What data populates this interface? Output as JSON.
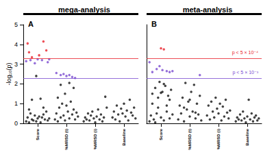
{
  "chart_data": [
    {
      "type": "scatter",
      "panel": "A",
      "title": "mega-analysis",
      "y_label": "-log₁₀(p)",
      "xlim": [
        0,
        4
      ],
      "xticks": [
        {
          "value": 0.5,
          "label": "Score"
        },
        {
          "value": 1.5,
          "label": "%MRSD (t)"
        },
        {
          "value": 2.5,
          "label": "%MRSD (i)"
        },
        {
          "value": 3.5,
          "label": "Baseline"
        }
      ],
      "ylim": [
        0,
        5
      ],
      "yticks": [
        0,
        1,
        2,
        3,
        4,
        5
      ],
      "grid": false,
      "tick_labels": true,
      "hlines": [
        {
          "value": 3.301,
          "color": "#e8202a"
        },
        {
          "value": 2.301,
          "color": "#7a4bd0"
        }
      ],
      "series": [
        {
          "color": "#e8202a",
          "marker": "circle",
          "x": [
            0.15,
            0.2,
            0.3,
            0.55,
            0.7,
            0.8
          ],
          "values": [
            4.05,
            3.6,
            3.35,
            3.45,
            4.15,
            3.7
          ]
        },
        {
          "color": "#7a4bd0",
          "marker": "circle",
          "x": [
            0.1,
            0.25,
            0.4,
            0.5,
            0.65,
            0.85,
            0.9
          ],
          "values": [
            3.15,
            3.2,
            3.05,
            3.25,
            3.2,
            3.1,
            3.25
          ]
        },
        {
          "color": "#7a4bd0",
          "marker": "circle",
          "x": [
            1.15,
            1.3,
            1.4,
            1.5,
            1.6,
            1.7,
            1.8
          ],
          "values": [
            2.55,
            2.45,
            2.5,
            2.4,
            2.45,
            2.35,
            2.3
          ]
        },
        {
          "color": "#111111",
          "marker": "circle",
          "x": [
            0.1,
            0.15,
            0.2,
            0.25,
            0.3,
            0.35,
            0.4,
            0.45,
            0.5,
            0.55,
            0.6,
            0.65,
            0.7,
            0.75,
            0.8,
            0.85,
            0.9,
            0.3,
            0.6,
            0.45,
            0.2,
            0.7
          ],
          "values": [
            0.1,
            0.3,
            0.05,
            0.5,
            0.2,
            0.15,
            0.4,
            0.1,
            0.25,
            0.35,
            0.05,
            0.3,
            0.45,
            0.2,
            0.6,
            0.15,
            0.25,
            1.2,
            1.25,
            2.4,
            0.7,
            0.8
          ]
        },
        {
          "color": "#111111",
          "marker": "circle",
          "x": [
            1.1,
            1.15,
            1.2,
            1.25,
            1.3,
            1.35,
            1.4,
            1.45,
            1.5,
            1.55,
            1.6,
            1.65,
            1.7,
            1.75,
            1.8,
            1.85,
            1.9,
            1.3,
            1.6,
            1.75,
            1.45,
            1.2
          ],
          "values": [
            0.2,
            0.5,
            0.1,
            0.8,
            0.3,
            1.0,
            0.4,
            0.15,
            0.9,
            0.6,
            0.25,
            1.1,
            0.45,
            0.7,
            0.2,
            0.55,
            0.35,
            1.95,
            2.05,
            1.8,
            1.5,
            1.3
          ]
        },
        {
          "color": "#111111",
          "marker": "circle",
          "x": [
            2.1,
            2.15,
            2.2,
            2.25,
            2.3,
            2.35,
            2.4,
            2.45,
            2.5,
            2.55,
            2.6,
            2.65,
            2.7,
            2.75,
            2.8,
            2.85,
            2.9
          ],
          "values": [
            0.1,
            0.3,
            0.2,
            0.5,
            0.15,
            0.4,
            0.6,
            0.25,
            0.05,
            0.35,
            0.7,
            0.2,
            0.45,
            0.1,
            0.3,
            1.35,
            0.8
          ]
        },
        {
          "color": "#111111",
          "marker": "circle",
          "x": [
            3.1,
            3.15,
            3.2,
            3.25,
            3.3,
            3.35,
            3.4,
            3.45,
            3.5,
            3.55,
            3.6,
            3.65,
            3.7,
            3.75,
            3.8,
            3.85,
            3.9
          ],
          "values": [
            0.3,
            0.6,
            0.2,
            0.9,
            0.45,
            0.1,
            0.75,
            0.5,
            1.0,
            0.35,
            0.65,
            0.15,
            1.2,
            0.55,
            0.4,
            0.8,
            0.25
          ]
        }
      ]
    },
    {
      "type": "scatter",
      "panel": "B",
      "title": "meta-analysis",
      "xlim": [
        0,
        4
      ],
      "xticks": [
        {
          "value": 0.5,
          "label": "Score"
        },
        {
          "value": 1.5,
          "label": "%MRSD (t)"
        },
        {
          "value": 2.5,
          "label": "%MRSD (i)"
        },
        {
          "value": 3.5,
          "label": "Baseline"
        }
      ],
      "ylim": [
        0,
        5
      ],
      "yticks": [
        0,
        1,
        2,
        3,
        4,
        5
      ],
      "grid": false,
      "tick_labels": "x",
      "hlines": [
        {
          "value": 3.301,
          "color": "#e8202a",
          "label": "p < 5 × 10⁻⁴"
        },
        {
          "value": 2.301,
          "color": "#7a4bd0",
          "label": "p < 5 × 10⁻³"
        }
      ],
      "series": [
        {
          "color": "#e8202a",
          "marker": "circle",
          "x": [
            0.5,
            0.6
          ],
          "values": [
            3.8,
            3.75
          ]
        },
        {
          "color": "#7a4bd0",
          "marker": "circle",
          "x": [
            0.1,
            0.2,
            0.35,
            0.45,
            0.55,
            0.7,
            0.8,
            0.9
          ],
          "values": [
            3.1,
            2.6,
            2.75,
            2.9,
            2.7,
            2.65,
            2.6,
            2.65
          ]
        },
        {
          "color": "#7a4bd0",
          "marker": "circle",
          "x": [
            1.85
          ],
          "values": [
            2.45
          ]
        },
        {
          "color": "#111111",
          "marker": "circle",
          "x": [
            0.1,
            0.15,
            0.2,
            0.25,
            0.3,
            0.35,
            0.4,
            0.45,
            0.5,
            0.55,
            0.6,
            0.65,
            0.7,
            0.75,
            0.8,
            0.85,
            0.9,
            0.2,
            0.4,
            0.6,
            0.8,
            0.3,
            0.5,
            0.7
          ],
          "values": [
            0.1,
            0.4,
            1.5,
            0.2,
            1.8,
            0.5,
            1.3,
            2.1,
            0.3,
            1.6,
            0.15,
            1.9,
            0.6,
            1.4,
            0.25,
            1.7,
            0.45,
            1.0,
            0.8,
            2.0,
            1.2,
            0.05,
            1.55,
            0.9
          ]
        },
        {
          "color": "#111111",
          "marker": "circle",
          "x": [
            1.1,
            1.15,
            1.2,
            1.25,
            1.3,
            1.35,
            1.4,
            1.45,
            1.5,
            1.55,
            1.6,
            1.65,
            1.7,
            1.75,
            1.8,
            1.85,
            1.9,
            1.3,
            1.5,
            1.7
          ],
          "values": [
            0.2,
            0.9,
            0.5,
            1.3,
            0.1,
            2.05,
            0.7,
            1.1,
            0.35,
            1.6,
            0.6,
            1.95,
            0.25,
            1.0,
            0.45,
            1.4,
            0.15,
            0.8,
            1.2,
            0.55
          ]
        },
        {
          "color": "#111111",
          "marker": "circle",
          "x": [
            2.1,
            2.15,
            2.2,
            2.25,
            2.3,
            2.35,
            2.4,
            2.45,
            2.5,
            2.55,
            2.6,
            2.65,
            2.7,
            2.75,
            2.8,
            2.85,
            2.9
          ],
          "values": [
            0.4,
            0.9,
            0.2,
            1.1,
            0.6,
            0.3,
            1.3,
            0.75,
            0.5,
            1.0,
            0.15,
            0.85,
            0.35,
            1.2,
            0.55,
            0.25,
            0.65
          ]
        },
        {
          "color": "#111111",
          "marker": "circle",
          "x": [
            3.1,
            3.15,
            3.2,
            3.25,
            3.3,
            3.35,
            3.4,
            3.45,
            3.5,
            3.55,
            3.6,
            3.65,
            3.7,
            3.75,
            3.8,
            3.85,
            3.9
          ],
          "values": [
            0.1,
            0.3,
            0.2,
            0.45,
            0.15,
            0.6,
            0.25,
            0.05,
            0.35,
            1.2,
            0.2,
            0.5,
            0.1,
            0.3,
            0.4,
            0.15,
            0.25
          ]
        }
      ]
    }
  ]
}
